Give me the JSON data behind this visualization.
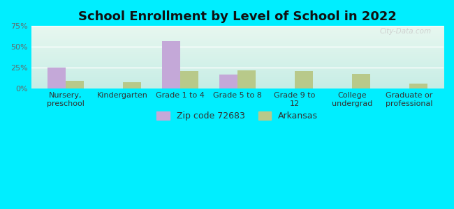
{
  "title": "School Enrollment by Level of School in 2022",
  "categories": [
    "Nursery,\npreschool",
    "Kindergarten",
    "Grade 1 to 4",
    "Grade 5 to 8",
    "Grade 9 to\n12",
    "College\nundergrad",
    "Graduate or\nprofessional"
  ],
  "zip_values": [
    25.5,
    0.0,
    57.0,
    16.5,
    0.0,
    0.0,
    0.0
  ],
  "ark_values": [
    9.0,
    8.0,
    21.0,
    22.0,
    21.0,
    18.0,
    6.0
  ],
  "zip_color": "#c4a8d8",
  "ark_color": "#b8c98a",
  "background_outer": "#00eeff",
  "background_inner_top": "#e8f8f0",
  "background_inner_bottom": "#c8ede6",
  "ylim": [
    0,
    75
  ],
  "yticks": [
    0,
    25,
    50,
    75
  ],
  "ytick_labels": [
    "0%",
    "25%",
    "50%",
    "75%"
  ],
  "legend_zip_label": "Zip code 72683",
  "legend_ark_label": "Arkansas",
  "title_fontsize": 13,
  "tick_fontsize": 8,
  "watermark": "City-Data.com"
}
